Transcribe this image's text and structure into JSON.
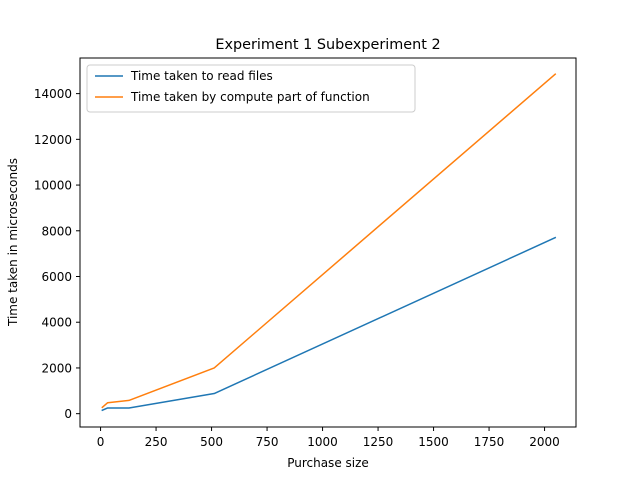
{
  "chart_data": {
    "type": "line",
    "title": "Experiment 1 Subexperiment 2",
    "xlabel": "Purchase size",
    "ylabel": "Time taken in microseconds",
    "xlim": [
      -92.6,
      2141.6
    ],
    "ylim": [
      -583,
      15558
    ],
    "xticks": [
      0,
      250,
      500,
      750,
      1000,
      1250,
      1500,
      1750,
      2000
    ],
    "yticks": [
      0,
      2000,
      4000,
      6000,
      8000,
      10000,
      12000,
      14000
    ],
    "grid": false,
    "legend_position": "top-left",
    "series": [
      {
        "name": "Time taken to read files",
        "color": "#1f77b4",
        "x": [
          8,
          32,
          128,
          512,
          2048
        ],
        "y": [
          150,
          250,
          250,
          880,
          7700
        ]
      },
      {
        "name": "Time taken by compute part of function",
        "color": "#ff7f0e",
        "x": [
          8,
          32,
          128,
          512,
          2048
        ],
        "y": [
          280,
          480,
          580,
          2000,
          14850
        ]
      }
    ]
  }
}
